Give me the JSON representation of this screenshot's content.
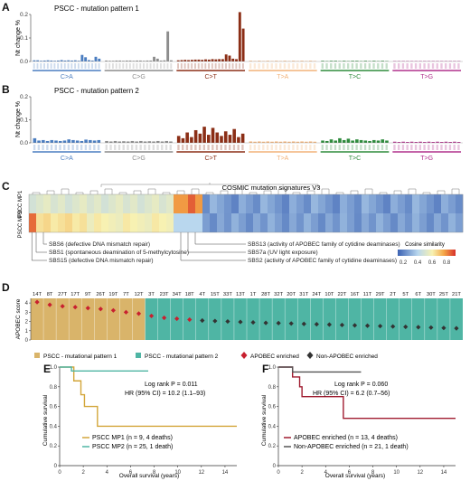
{
  "panels": {
    "a": {
      "letter": "A",
      "title": "PSCC - mutation pattern 1",
      "ylabel": "Nt change %"
    },
    "b": {
      "letter": "B",
      "title": "PSCC - mutation pattern 2",
      "ylabel": "Nt change %"
    },
    "c": {
      "letter": "C"
    },
    "d": {
      "letter": "D"
    },
    "e": {
      "letter": "E"
    },
    "f": {
      "letter": "F"
    }
  },
  "colors": {
    "CA": "#4a7dc0",
    "CG": "#8c8c8c",
    "CT": "#8b2e16",
    "TA": "#f2b278",
    "TC": "#2e8b3c",
    "TG": "#b0308c",
    "pattern1": "#d9b46a",
    "pattern2": "#4fb5a4",
    "apobec": "#c8202f",
    "nonapobec": "#333333",
    "mp1_line": "#d3a63a",
    "mp2_line": "#4fb5a4",
    "f_apobec_line": "#a01c30",
    "f_non_line": "#555555"
  },
  "chart_data": [
    {
      "type": "bar",
      "panel": "A",
      "title": "PSCC - mutation pattern 1",
      "ylabel": "Nt change %",
      "ylim": [
        0,
        0.2
      ],
      "yticks": [
        "0.0",
        "0.1",
        "0.2"
      ],
      "groups": [
        "C>A",
        "C>G",
        "C>T",
        "T>A",
        "T>C",
        "T>G"
      ],
      "values": {
        "C>A": [
          0.005,
          0.005,
          0.003,
          0.004,
          0.005,
          0.004,
          0.003,
          0.004,
          0.006,
          0.004,
          0.005,
          0.004,
          0.005,
          0.003,
          0.028,
          0.018,
          0.006,
          0.004,
          0.02,
          0.012
        ],
        "C>G": [
          0.004,
          0.003,
          0.003,
          0.004,
          0.004,
          0.003,
          0.004,
          0.004,
          0.003,
          0.004,
          0.004,
          0.003,
          0.004,
          0.004,
          0.02,
          0.012,
          0.004,
          0.005,
          0.128,
          0.005
        ],
        "C>T": [
          0.005,
          0.006,
          0.007,
          0.006,
          0.007,
          0.008,
          0.008,
          0.007,
          0.009,
          0.008,
          0.01,
          0.009,
          0.01,
          0.01,
          0.03,
          0.025,
          0.012,
          0.01,
          0.21,
          0.14
        ],
        "T>A": [
          0.003,
          0.002,
          0.003,
          0.002,
          0.003,
          0.002,
          0.003,
          0.002,
          0.003,
          0.002,
          0.003,
          0.002,
          0.003,
          0.002,
          0.003,
          0.002
        ],
        "T>C": [
          0.003,
          0.002,
          0.003,
          0.003,
          0.002,
          0.003,
          0.002,
          0.003,
          0.003,
          0.002,
          0.003,
          0.002,
          0.003,
          0.002,
          0.003,
          0.002
        ],
        "T>G": [
          0.002,
          0.002,
          0.002,
          0.002,
          0.002,
          0.002,
          0.002,
          0.002,
          0.002,
          0.002,
          0.002,
          0.002,
          0.002,
          0.002,
          0.002,
          0.002
        ]
      }
    },
    {
      "type": "bar",
      "panel": "B",
      "title": "PSCC - mutation pattern 2",
      "ylabel": "Nt change %",
      "ylim": [
        0,
        0.2
      ],
      "yticks": [
        "0.0",
        "0.1",
        "0.2"
      ],
      "groups": [
        "C>A",
        "C>G",
        "C>T",
        "T>A",
        "T>C",
        "T>G"
      ],
      "values": {
        "C>A": [
          0.02,
          0.01,
          0.012,
          0.008,
          0.012,
          0.01,
          0.008,
          0.01,
          0.015,
          0.012,
          0.01,
          0.008,
          0.014,
          0.012,
          0.01,
          0.012
        ],
        "C>G": [
          0.008,
          0.006,
          0.008,
          0.006,
          0.007,
          0.006,
          0.008,
          0.006,
          0.008,
          0.006,
          0.007,
          0.006,
          0.008,
          0.006,
          0.008,
          0.006
        ],
        "C>T": [
          0.03,
          0.02,
          0.045,
          0.025,
          0.055,
          0.04,
          0.07,
          0.035,
          0.065,
          0.045,
          0.03,
          0.05,
          0.035,
          0.06,
          0.025,
          0.04
        ],
        "T>A": [
          0.006,
          0.005,
          0.006,
          0.005,
          0.006,
          0.005,
          0.006,
          0.005,
          0.006,
          0.005,
          0.006,
          0.005,
          0.006,
          0.005,
          0.006,
          0.005
        ],
        "T>C": [
          0.01,
          0.008,
          0.015,
          0.01,
          0.02,
          0.012,
          0.018,
          0.01,
          0.015,
          0.012,
          0.01,
          0.008,
          0.012,
          0.01,
          0.015,
          0.01
        ],
        "T>G": [
          0.005,
          0.004,
          0.005,
          0.004,
          0.005,
          0.004,
          0.005,
          0.004,
          0.005,
          0.004,
          0.005,
          0.004,
          0.005,
          0.004,
          0.005,
          0.004
        ]
      }
    },
    {
      "type": "heatmap",
      "panel": "C",
      "title": "COSMIC mutation signatures V3",
      "rows": [
        "PSCC MP1",
        "PSCC MP2"
      ],
      "legend_title": "Cosine similarity",
      "legend_ticks": [
        "0.2",
        "0.4",
        "0.6",
        "0.8"
      ],
      "annotations_left": [
        "SBS6 (defective DNA mismatch repair)",
        "SBS1 (spontaneous deamination of 5-methylcytosine)",
        "SBS15 (defective DNA mismatch repair)"
      ],
      "annotations_right": [
        "SBS13 (activity of APOBEC family of cytidine deaminases)",
        "SBS7a (UV light exposure)",
        "SBS2 (activity of APOBEC family of cytidine deaminases)"
      ]
    },
    {
      "type": "scatter",
      "panel": "D",
      "ylabel": "APOBEC score",
      "yticks": [
        "0",
        "1",
        "2",
        "3",
        "4"
      ],
      "ylim": [
        0,
        4.5
      ],
      "samples": [
        "14T",
        "8T",
        "27T",
        "17T",
        "9T",
        "26T",
        "19T",
        "7T",
        "12T",
        "3T",
        "23T",
        "34T",
        "18T",
        "4T",
        "15T",
        "33T",
        "13T",
        "1T",
        "28T",
        "32T",
        "20T",
        "31T",
        "24T",
        "10T",
        "22T",
        "16T",
        "11T",
        "29T",
        "2T",
        "5T",
        "6T",
        "30T",
        "25T",
        "21T"
      ],
      "pattern": [
        1,
        1,
        1,
        1,
        1,
        1,
        1,
        1,
        1,
        2,
        2,
        2,
        2,
        2,
        2,
        2,
        2,
        2,
        2,
        2,
        2,
        2,
        2,
        2,
        2,
        2,
        2,
        2,
        2,
        2,
        2,
        2,
        2,
        2
      ],
      "scores": [
        4.1,
        3.8,
        3.65,
        3.55,
        3.45,
        3.35,
        3.2,
        3.0,
        2.85,
        2.6,
        2.4,
        2.3,
        2.2,
        2.1,
        2.05,
        2.0,
        1.95,
        1.9,
        1.85,
        1.82,
        1.78,
        1.74,
        1.7,
        1.66,
        1.62,
        1.58,
        1.54,
        1.5,
        1.46,
        1.42,
        1.38,
        1.34,
        1.3,
        1.26
      ],
      "apobec_enriched": [
        true,
        true,
        true,
        true,
        true,
        true,
        true,
        true,
        true,
        true,
        true,
        true,
        true,
        false,
        false,
        false,
        false,
        false,
        false,
        false,
        false,
        false,
        false,
        false,
        false,
        false,
        false,
        false,
        false,
        false,
        false,
        false,
        false,
        false
      ],
      "legend": [
        "PSCC - mutational pattern 1",
        "PSCC - mutational pattern 2",
        "APOBEC enriched",
        "Non-APOBEC enriched"
      ]
    },
    {
      "type": "line",
      "panel": "E",
      "xlabel": "Overall survival (years)",
      "ylabel": "Cumulative survival",
      "xlim": [
        0,
        15
      ],
      "ylim": [
        0,
        1.0
      ],
      "xticks": [
        "0",
        "2",
        "4",
        "6",
        "8",
        "10",
        "12",
        "14"
      ],
      "yticks": [
        "0",
        "0.2",
        "0.4",
        "0.6",
        "0.8",
        "1.0"
      ],
      "stat_p_label": "Log rank P = 0.011",
      "stat_hr_label": "HR (95% CI) = 10.2 (1.1–93)",
      "series": [
        {
          "name": "PSCC MP1 (n = 9, 4 deaths)",
          "x": [
            0,
            0.9,
            1.2,
            1.8,
            2.1,
            3.0,
            3.2,
            15
          ],
          "y": [
            1.0,
            1.0,
            0.86,
            0.72,
            0.6,
            0.6,
            0.4,
            0.4
          ]
        },
        {
          "name": "PSCC MP2 (n = 25, 1 death)",
          "x": [
            0,
            1.0,
            7.5
          ],
          "y": [
            1.0,
            0.96,
            0.96
          ]
        }
      ]
    },
    {
      "type": "line",
      "panel": "F",
      "xlabel": "Overall survival (years)",
      "ylabel": "Cumulative survival",
      "xlim": [
        0,
        15
      ],
      "ylim": [
        0,
        1.0
      ],
      "xticks": [
        "0",
        "2",
        "4",
        "6",
        "8",
        "10",
        "12",
        "14"
      ],
      "yticks": [
        "0",
        "0.2",
        "0.4",
        "0.6",
        "0.8",
        "1.0"
      ],
      "stat_p_label": "Log rank P = 0.060",
      "stat_hr_label": "HR (95% CI) = 6.2 (0.7–56)",
      "series": [
        {
          "name": "APOBEC enriched (n = 13, 4 deaths)",
          "x": [
            0,
            1.2,
            1.8,
            2.0,
            5.5,
            15
          ],
          "y": [
            1.0,
            0.9,
            0.8,
            0.7,
            0.48,
            0.48
          ]
        },
        {
          "name": "Non-APOBEC enriched (n = 21, 1 death)",
          "x": [
            0,
            1.2,
            7.0
          ],
          "y": [
            1.0,
            0.95,
            0.95
          ]
        }
      ]
    }
  ]
}
